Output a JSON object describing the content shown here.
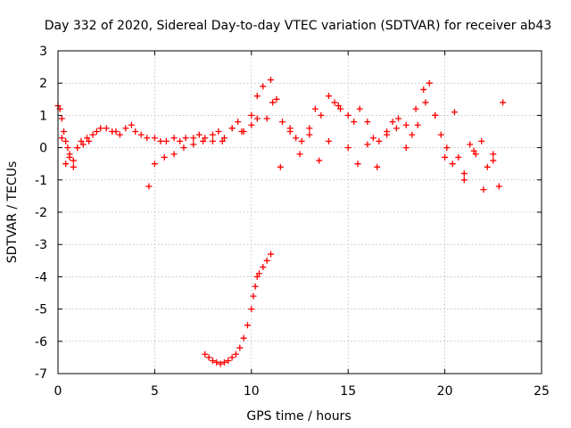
{
  "chart_data": {
    "type": "scatter",
    "title": "Day 332 of 2020, Sidereal Day-to-day VTEC variation (SDTVAR) for receiver ab43",
    "xlabel": "GPS time / hours",
    "ylabel": "SDTVAR / TECUs",
    "xlim": [
      0,
      25
    ],
    "ylim": [
      -7,
      3
    ],
    "xticks": [
      0,
      5,
      10,
      15,
      20,
      25
    ],
    "yticks": [
      -7,
      -6,
      -5,
      -4,
      -3,
      -2,
      -1,
      0,
      1,
      2,
      3
    ],
    "grid": true,
    "marker": "+",
    "color": "#ff0000",
    "series": [
      {
        "name": "satellite-arcs-main",
        "x": [
          0.0,
          0.1,
          0.2,
          0.3,
          0.4,
          0.5,
          0.6,
          0.8,
          1.0,
          1.2,
          1.5,
          1.8,
          2.0,
          2.2,
          2.5,
          2.8,
          3.0,
          3.2,
          3.5,
          3.8,
          4.0,
          4.3,
          4.6,
          5.0,
          5.3,
          5.6,
          6.0,
          6.3,
          6.6,
          7.0,
          7.3,
          7.6,
          8.0,
          8.3,
          8.6,
          9.0,
          9.3,
          9.6,
          10.0,
          10.3,
          10.6,
          11.0,
          11.3,
          11.6,
          12.0,
          12.3,
          12.6,
          13.0,
          13.3,
          13.6,
          14.0,
          14.3,
          14.6,
          15.0,
          15.3,
          15.6,
          16.0,
          16.3,
          16.6,
          17.0,
          17.3,
          17.6,
          18.0,
          18.3,
          18.6,
          18.9,
          19.2,
          19.5,
          19.8,
          20.1,
          20.4,
          20.7,
          21.0,
          21.3,
          21.6,
          21.9,
          22.2,
          22.5,
          22.8
        ],
        "y": [
          1.3,
          1.2,
          0.9,
          0.5,
          0.2,
          0.0,
          -0.2,
          -0.4,
          0.0,
          0.2,
          0.3,
          0.4,
          0.5,
          0.6,
          0.6,
          0.5,
          0.5,
          0.4,
          0.6,
          0.7,
          0.5,
          0.4,
          0.3,
          0.3,
          0.2,
          0.2,
          0.3,
          0.2,
          0.3,
          0.3,
          0.4,
          0.3,
          0.2,
          0.5,
          0.3,
          0.6,
          0.8,
          0.5,
          1.0,
          1.6,
          1.9,
          2.1,
          1.5,
          0.8,
          0.5,
          0.3,
          0.2,
          0.6,
          1.2,
          1.0,
          1.6,
          1.4,
          1.2,
          1.0,
          0.8,
          1.2,
          0.8,
          0.3,
          0.2,
          0.5,
          0.8,
          0.9,
          0.7,
          0.4,
          0.7,
          1.8,
          2.0,
          1.0,
          0.4,
          0.0,
          -0.5,
          -0.3,
          -0.8,
          0.1,
          -0.2,
          0.2,
          -0.6,
          -0.2,
          -1.2
        ]
      },
      {
        "name": "satellite-arcs-secondary",
        "x": [
          0.2,
          0.4,
          0.6,
          0.8,
          1.0,
          1.3,
          1.6,
          4.7,
          5.0,
          5.5,
          6.0,
          6.5,
          7.0,
          7.5,
          8.0,
          8.5,
          9.0,
          9.5,
          10.0,
          10.3,
          10.8,
          11.1,
          11.5,
          12.0,
          12.5,
          13.0,
          13.5,
          14.0,
          14.5,
          15.0,
          15.5,
          16.0,
          16.5,
          17.0,
          17.5,
          18.0,
          18.5,
          19.0,
          19.5,
          20.0,
          20.5,
          21.0,
          21.5,
          22.0,
          22.5,
          23.0
        ],
        "y": [
          0.3,
          -0.5,
          -0.3,
          -0.6,
          0.0,
          0.1,
          0.2,
          -1.2,
          -0.5,
          -0.3,
          -0.2,
          0.0,
          0.1,
          0.2,
          0.4,
          0.2,
          0.6,
          0.5,
          0.7,
          0.9,
          0.9,
          1.4,
          -0.6,
          0.6,
          -0.2,
          0.4,
          -0.4,
          0.2,
          1.3,
          0.0,
          -0.5,
          0.1,
          -0.6,
          0.4,
          0.6,
          0.0,
          1.2,
          1.4,
          1.0,
          -0.3,
          1.1,
          -1.0,
          -0.1,
          -1.3,
          -0.4,
          1.4
        ]
      },
      {
        "name": "satellite-arc-negative",
        "x": [
          7.6,
          7.8,
          8.0,
          8.2,
          8.4,
          8.6,
          8.8,
          9.0,
          9.2,
          9.4,
          9.6,
          9.8,
          10.0,
          10.1,
          10.2,
          10.3,
          10.4,
          10.6,
          10.8,
          11.0
        ],
        "y": [
          -6.4,
          -6.5,
          -6.6,
          -6.65,
          -6.7,
          -6.65,
          -6.6,
          -6.5,
          -6.4,
          -6.2,
          -5.9,
          -5.5,
          -5.0,
          -4.6,
          -4.3,
          -4.0,
          -3.9,
          -3.7,
          -3.5,
          -3.3
        ]
      }
    ]
  }
}
